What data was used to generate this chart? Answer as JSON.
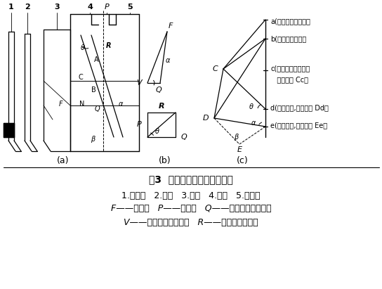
{
  "title": "图3  吊楔机构运动受力分析图",
  "subtitle1": "1.压料板   2.凸模   3.滑块   4.斜楔   5.反侧块",
  "subtitle2_parts": [
    "F",
    "——冲裁力   ",
    "P",
    "——冲压力   ",
    "Q",
    "——斜楔传给滑块的力"
  ],
  "subtitle3_parts": [
    "V",
    "——模体传给滑块的力   ",
    "R",
    "——斜楔所收反侧力"
  ],
  "label_a": "(a)",
  "label_b": "(b)",
  "label_c": "(c)",
  "right_label_a": "a(斜楔接触反侧块）",
  "right_label_b": "b(斜楔接触滑块）",
  "right_label_c1": "c(压料板接触制件，",
  "right_label_c2": "   滑块行程 Cc）",
  "right_label_d": "d(冲裁开始,滑块行程 Dd）",
  "right_label_e": "e(冲裁结束,滑块行程 Ee）"
}
